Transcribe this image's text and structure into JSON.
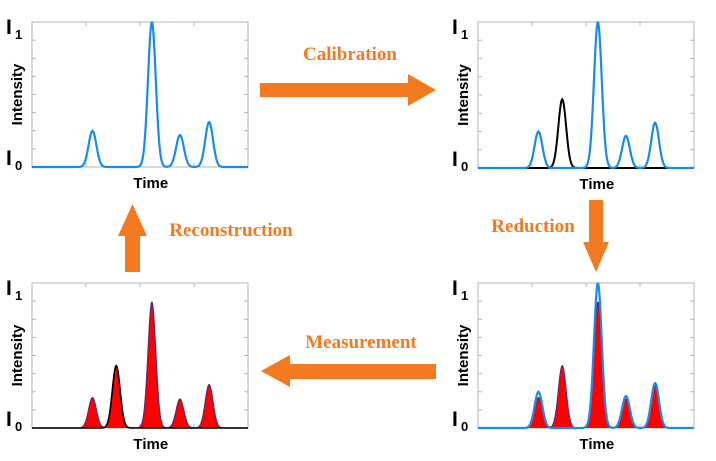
{
  "axis_labels": {
    "x": "Time",
    "y": "Intensity"
  },
  "levels": {
    "top": "I",
    "top_sub": "1",
    "bottom": "I",
    "bottom_sub": "0"
  },
  "steps": {
    "calibration": "Calibration",
    "reduction": "Reduction",
    "measurement": "Measurement",
    "reconstruction": "Reconstruction"
  },
  "colors": {
    "arrow": "#f47a20",
    "label": "#f47a20",
    "blue": "#1a8ce8",
    "black": "#000000",
    "red": "#ff0000"
  },
  "peaks": {
    "blue": [
      0.25,
      1.0,
      0.22,
      0.31
    ],
    "black": 0.47,
    "red": [
      0.21,
      0.43,
      0.87,
      0.2,
      0.3
    ]
  },
  "panels": [
    {
      "id": "top-left",
      "blue_line": true,
      "black_peak": false,
      "red_fill": false,
      "black_line": false
    },
    {
      "id": "top-right",
      "blue_line": true,
      "black_peak": true,
      "red_fill": false,
      "black_line": false
    },
    {
      "id": "bottom-right",
      "blue_line": true,
      "black_peak": false,
      "red_fill": true,
      "black_line": false
    },
    {
      "id": "bottom-left",
      "blue_line": false,
      "black_peak": false,
      "red_fill": true,
      "black_line": true
    }
  ]
}
